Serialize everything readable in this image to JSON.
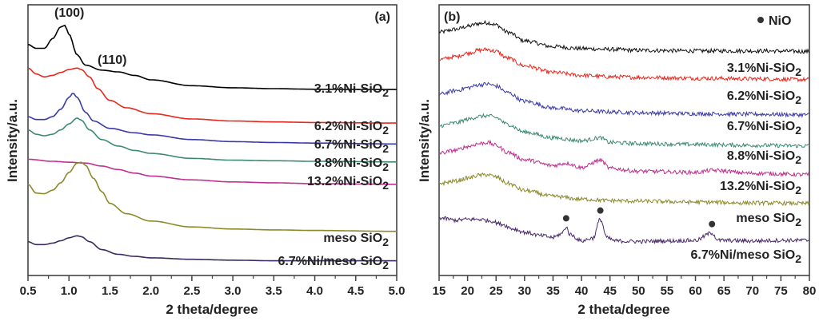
{
  "chart_data": [
    {
      "type": "line",
      "panel_label": "(a)",
      "xlabel": "2 theta/degree",
      "ylabel": "Intensity/a.u.",
      "xlim": [
        0.5,
        5.0
      ],
      "xticks": [
        "0.5",
        "1.0",
        "1.5",
        "2.0",
        "2.5",
        "3.0",
        "3.5",
        "4.0",
        "4.5",
        "5.0"
      ],
      "y_ticks_shown": false,
      "stacked_offset": true,
      "annotations": [
        {
          "text": "(100)",
          "x": 0.9
        },
        {
          "text": "(110)",
          "x": 1.55
        }
      ],
      "series": [
        {
          "name": "3.1%Ni-SiO2",
          "label_main": "3.1%Ni-SiO",
          "label_sub": "2",
          "color": "#000000",
          "x": [
            0.5,
            0.6,
            0.7,
            0.8,
            0.9,
            0.95,
            1.0,
            1.1,
            1.2,
            1.4,
            1.6,
            1.8,
            2.0,
            2.5,
            3.0,
            3.5,
            4.0,
            5.0
          ],
          "y": [
            7.85,
            7.72,
            7.72,
            8.05,
            8.45,
            8.5,
            8.2,
            7.5,
            7.15,
            6.98,
            6.92,
            6.8,
            6.65,
            6.45,
            6.38,
            6.35,
            6.33,
            6.32
          ]
        },
        {
          "name": "6.2%Ni-SiO2",
          "label_main": "6.2%Ni-SiO",
          "label_sub": "2",
          "color": "#e8281e",
          "x": [
            0.5,
            0.6,
            0.7,
            0.8,
            0.9,
            1.0,
            1.1,
            1.15,
            1.25,
            1.35,
            1.5,
            1.7,
            2.0,
            2.5,
            3.0,
            3.5,
            4.0,
            5.0
          ],
          "y": [
            7.05,
            6.85,
            6.75,
            6.8,
            6.9,
            7.0,
            7.05,
            7.0,
            6.75,
            6.35,
            5.95,
            5.7,
            5.5,
            5.32,
            5.25,
            5.22,
            5.2,
            5.18
          ]
        },
        {
          "name": "6.7%Ni-SiO2",
          "label_main": "6.7%Ni-SiO",
          "label_sub": "2",
          "color": "#3a3aa8",
          "x": [
            0.5,
            0.6,
            0.7,
            0.8,
            0.9,
            1.0,
            1.05,
            1.1,
            1.2,
            1.3,
            1.5,
            1.8,
            2.0,
            2.5,
            3.0,
            3.5,
            4.0,
            5.0
          ],
          "y": [
            5.4,
            5.3,
            5.3,
            5.4,
            5.65,
            6.05,
            6.2,
            6.05,
            5.55,
            5.25,
            5.0,
            4.85,
            4.78,
            4.62,
            4.55,
            4.52,
            4.5,
            4.47
          ]
        },
        {
          "name": "8.8%Ni-SiO2",
          "label_main": "8.8%Ni-SiO",
          "label_sub": "2",
          "color": "#3d8a72",
          "x": [
            0.5,
            0.6,
            0.7,
            0.8,
            0.9,
            1.0,
            1.1,
            1.15,
            1.25,
            1.4,
            1.6,
            1.8,
            2.0,
            2.5,
            3.0,
            3.5,
            4.0,
            5.0
          ],
          "y": [
            4.95,
            4.8,
            4.75,
            4.8,
            4.95,
            5.15,
            5.35,
            5.28,
            4.95,
            4.62,
            4.4,
            4.25,
            4.15,
            3.98,
            3.92,
            3.9,
            3.88,
            3.86
          ]
        },
        {
          "name": "13.2%Ni-SiO2",
          "label_main": "13.2%Ni-SiO",
          "label_sub": "2",
          "color": "#c0308f",
          "x": [
            0.5,
            0.8,
            1.0,
            1.2,
            1.4,
            1.6,
            1.8,
            2.0,
            2.5,
            3.0,
            3.5,
            4.0,
            5.0
          ],
          "y": [
            3.95,
            3.88,
            3.85,
            3.82,
            3.72,
            3.6,
            3.48,
            3.38,
            3.25,
            3.18,
            3.15,
            3.12,
            3.1
          ]
        },
        {
          "name": "meso SiO2",
          "label_main": "meso SiO",
          "label_sub": "2",
          "color": "#8c8a28",
          "x": [
            0.5,
            0.6,
            0.7,
            0.8,
            0.9,
            1.0,
            1.1,
            1.15,
            1.2,
            1.3,
            1.4,
            1.5,
            1.7,
            2.0,
            2.5,
            3.0,
            3.5,
            4.0,
            5.0
          ],
          "y": [
            3.1,
            2.8,
            2.78,
            2.9,
            3.15,
            3.5,
            3.82,
            3.85,
            3.75,
            3.3,
            2.85,
            2.45,
            2.1,
            1.85,
            1.65,
            1.58,
            1.55,
            1.53,
            1.5
          ]
        },
        {
          "name": "6.7%Ni/meso SiO2",
          "label_main": "6.7%Ni/meso SiO",
          "label_sub": "2",
          "color": "#3a2a60",
          "x": [
            0.5,
            0.6,
            0.7,
            0.8,
            0.9,
            1.0,
            1.1,
            1.15,
            1.25,
            1.4,
            1.6,
            1.8,
            2.0,
            2.5,
            3.0,
            3.5,
            4.0,
            5.0
          ],
          "y": [
            1.15,
            1.05,
            1.05,
            1.1,
            1.18,
            1.28,
            1.35,
            1.32,
            1.15,
            0.88,
            0.72,
            0.65,
            0.6,
            0.55,
            0.52,
            0.5,
            0.5,
            0.5
          ]
        }
      ]
    },
    {
      "type": "line",
      "panel_label": "(b)",
      "xlabel": "2 theta/degree",
      "ylabel": "Intensity/a.u.",
      "xlim": [
        15,
        80
      ],
      "xticks": [
        "15",
        "20",
        "25",
        "30",
        "35",
        "40",
        "45",
        "50",
        "55",
        "60",
        "65",
        "70",
        "75",
        "80"
      ],
      "y_ticks_shown": false,
      "stacked_offset": true,
      "legend": {
        "marker": "filled-circle",
        "text": "NiO",
        "placement": "top-right"
      },
      "nio_markers_x": [
        37.3,
        43.3,
        62.9
      ],
      "series": [
        {
          "name": "3.1%Ni-SiO2",
          "label_main": "3.1%Ni-SiO",
          "label_sub": "2",
          "color": "#111111",
          "x": [
            15,
            18,
            20,
            22,
            23.5,
            25,
            27,
            30,
            35,
            40,
            45,
            50,
            60,
            70,
            80
          ],
          "y": [
            8.45,
            8.55,
            8.65,
            8.75,
            8.78,
            8.7,
            8.45,
            8.15,
            7.95,
            7.88,
            7.85,
            7.82,
            7.8,
            7.8,
            7.78
          ]
        },
        {
          "name": "6.2%Ni-SiO2",
          "label_main": "6.2%Ni-SiO",
          "label_sub": "2",
          "color": "#e8281e",
          "x": [
            15,
            18,
            20,
            22,
            23.5,
            25,
            27,
            30,
            35,
            40,
            45,
            50,
            60,
            70,
            80
          ],
          "y": [
            7.5,
            7.6,
            7.72,
            7.82,
            7.85,
            7.78,
            7.55,
            7.28,
            7.05,
            6.95,
            6.9,
            6.88,
            6.85,
            6.83,
            6.8
          ]
        },
        {
          "name": "6.7%Ni-SiO2",
          "label_main": "6.7%Ni-SiO",
          "label_sub": "2",
          "color": "#3a3aa8",
          "x": [
            15,
            18,
            20,
            22,
            23.5,
            25,
            27,
            30,
            35,
            40,
            45,
            50,
            60,
            70,
            80
          ],
          "y": [
            6.3,
            6.42,
            6.52,
            6.62,
            6.65,
            6.58,
            6.35,
            6.05,
            5.82,
            5.72,
            5.68,
            5.65,
            5.62,
            5.6,
            5.58
          ]
        },
        {
          "name": "8.8%Ni-SiO2",
          "label_main": "8.8%Ni-SiO",
          "label_sub": "2",
          "color": "#3d8a72",
          "x": [
            15,
            18,
            20,
            22,
            23.5,
            25,
            27,
            30,
            35,
            40,
            43.3,
            45,
            50,
            60,
            70,
            80
          ],
          "y": [
            5.2,
            5.3,
            5.42,
            5.52,
            5.55,
            5.48,
            5.25,
            4.98,
            4.78,
            4.68,
            4.78,
            4.62,
            4.58,
            4.55,
            4.52,
            4.5
          ]
        },
        {
          "name": "13.2%Ni-SiO2",
          "label_main": "13.2%Ni-SiO",
          "label_sub": "2",
          "color": "#c0308f",
          "x": [
            15,
            18,
            20,
            22,
            23.5,
            25,
            27,
            30,
            35,
            37.3,
            40,
            43.3,
            45,
            50,
            60,
            63,
            70,
            80
          ],
          "y": [
            4.25,
            4.35,
            4.48,
            4.58,
            4.62,
            4.52,
            4.28,
            4.02,
            3.82,
            3.9,
            3.75,
            4.0,
            3.72,
            3.62,
            3.58,
            3.65,
            3.55,
            3.5
          ]
        },
        {
          "name": "meso SiO2",
          "label_main": "meso SiO",
          "label_sub": "2",
          "color": "#8c8a28",
          "x": [
            15,
            18,
            20,
            22,
            23.5,
            25,
            27,
            30,
            35,
            40,
            45,
            50,
            60,
            70,
            80
          ],
          "y": [
            3.2,
            3.28,
            3.38,
            3.48,
            3.5,
            3.42,
            3.2,
            2.95,
            2.75,
            2.65,
            2.6,
            2.58,
            2.55,
            2.52,
            2.5
          ]
        },
        {
          "name": "6.7%Ni/meso SiO2",
          "label_main": "6.7%Ni/meso SiO",
          "label_sub": "2",
          "color": "#4a2a6a",
          "x": [
            15,
            18,
            20,
            22,
            24,
            26,
            28,
            30,
            33,
            35,
            36.5,
            37.3,
            38,
            40,
            42,
            43.3,
            44.5,
            46,
            50,
            55,
            60,
            62.9,
            64,
            70,
            75,
            80
          ],
          "y": [
            2.0,
            1.92,
            1.95,
            1.95,
            1.9,
            1.78,
            1.62,
            1.5,
            1.38,
            1.32,
            1.45,
            1.68,
            1.42,
            1.2,
            1.3,
            1.95,
            1.3,
            1.2,
            1.18,
            1.2,
            1.22,
            1.48,
            1.22,
            1.2,
            1.22,
            1.22
          ]
        }
      ]
    }
  ]
}
